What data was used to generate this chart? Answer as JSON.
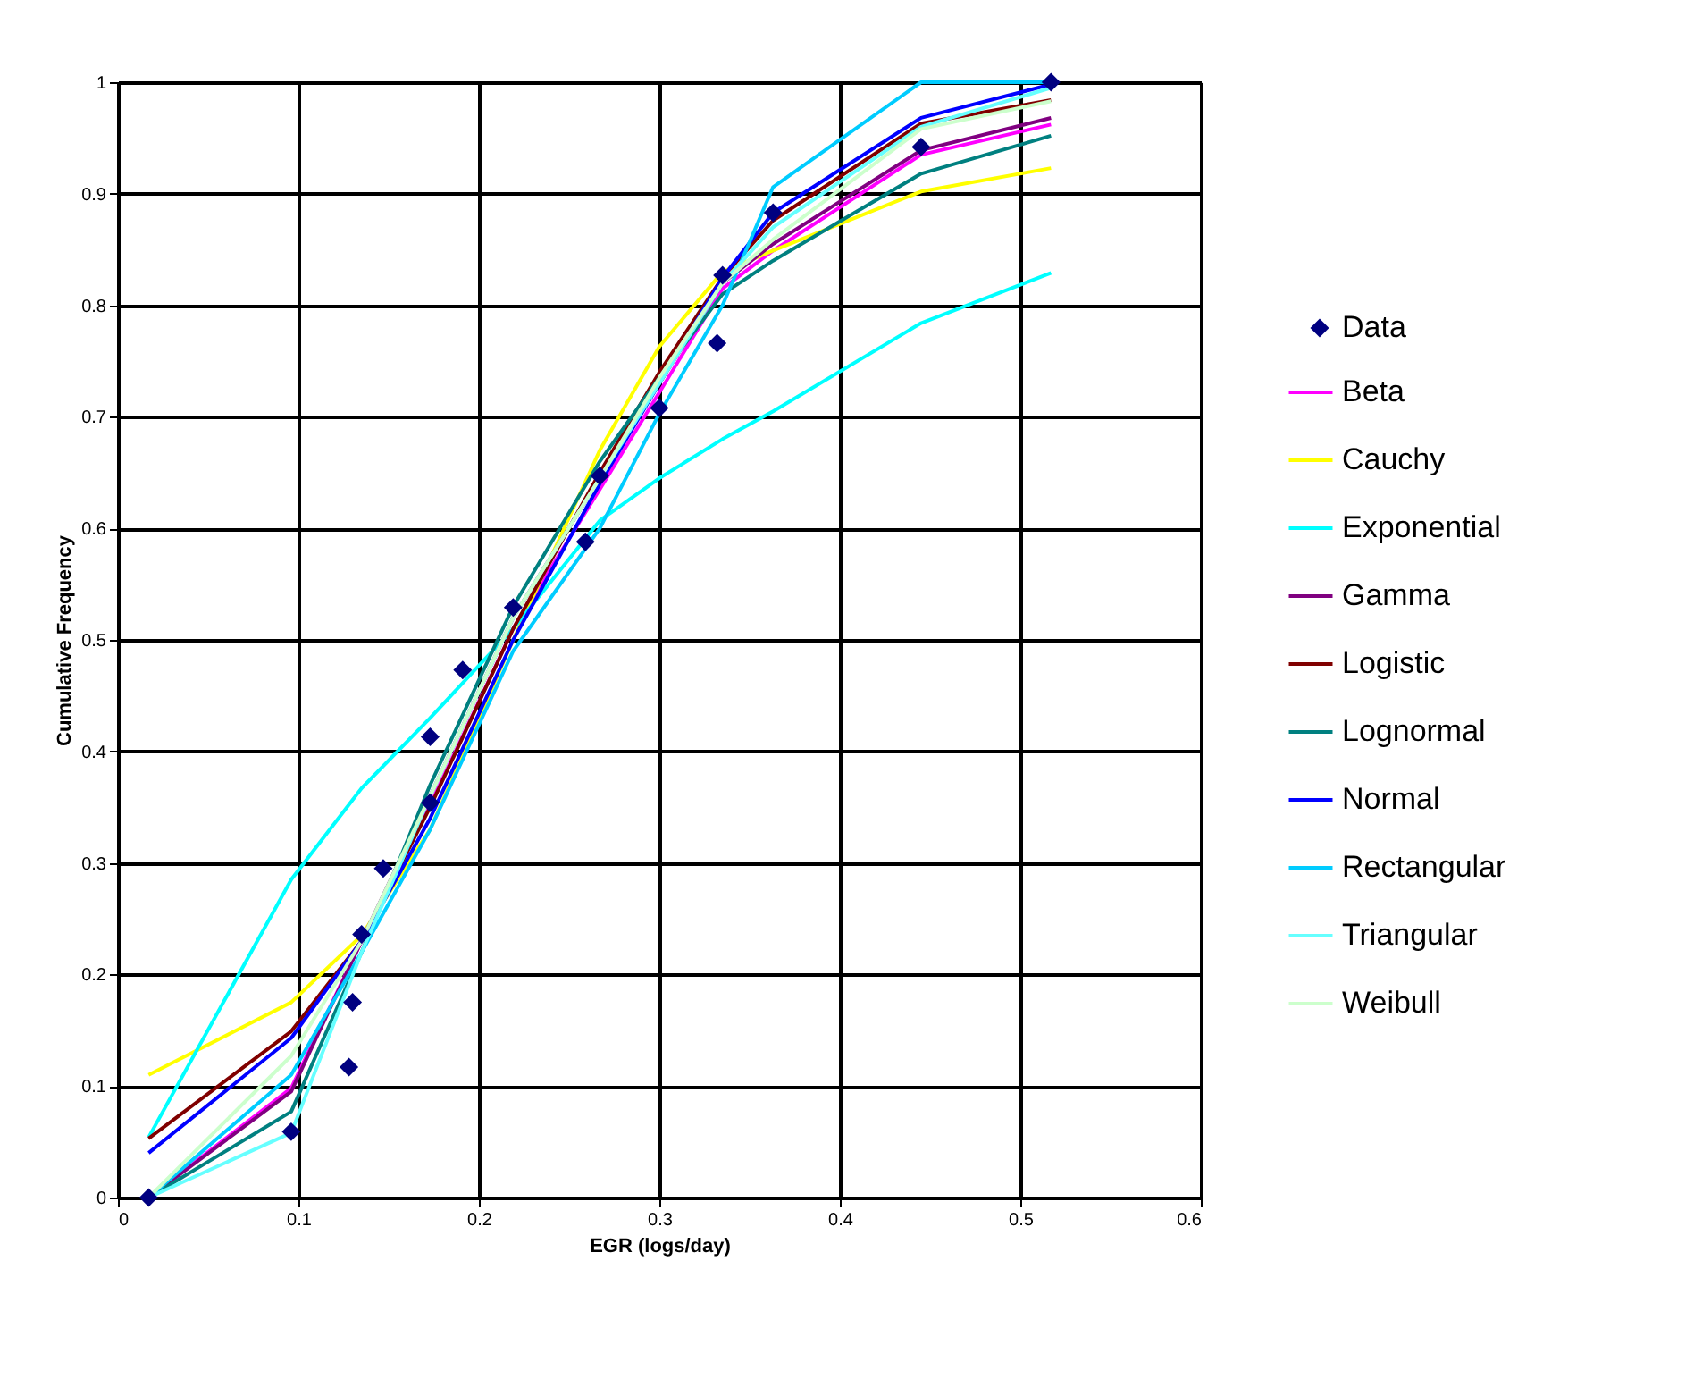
{
  "chart_data": {
    "type": "line",
    "xlabel": "EGR (logs/day)",
    "ylabel": "Cumulative Frequency",
    "xlim": [
      0,
      0.6
    ],
    "xticks": [
      0,
      0.1,
      0.2,
      0.3,
      0.4,
      0.5,
      0.6
    ],
    "ylim": [
      0,
      1
    ],
    "yticks": [
      0,
      0.1,
      0.2,
      0.3,
      0.4,
      0.5,
      0.6,
      0.7,
      0.8,
      0.9,
      1
    ],
    "grid": true,
    "legend": "right",
    "marker": "none",
    "line_style": "solid",
    "x": [
      0.017,
      0.096,
      0.135,
      0.173,
      0.219,
      0.267,
      0.3,
      0.335,
      0.363,
      0.445,
      0.517
    ],
    "series": [
      {
        "name": "Data",
        "type": "scatter",
        "marker": "diamond",
        "color": "#000080",
        "x": [
          0.017,
          0.096,
          0.128,
          0.13,
          0.135,
          0.147,
          0.173,
          0.173,
          0.191,
          0.219,
          0.259,
          0.267,
          0.3,
          0.332,
          0.335,
          0.363,
          0.445,
          0.517
        ],
        "values": [
          0,
          0.059,
          0.117,
          0.175,
          0.236,
          0.295,
          0.413,
          0.354,
          0.473,
          0.529,
          0.588,
          0.647,
          0.708,
          0.766,
          0.827,
          0.883,
          0.942,
          1.0
        ]
      },
      {
        "name": "Beta",
        "color": "#ff00ff",
        "values": [
          0,
          0.098,
          0.23,
          0.352,
          0.51,
          0.635,
          0.722,
          0.815,
          0.849,
          0.935,
          0.962
        ]
      },
      {
        "name": "Cauchy",
        "color": "#ffff00",
        "values": [
          0.11,
          0.175,
          0.235,
          0.33,
          0.5,
          0.67,
          0.763,
          0.83,
          0.849,
          0.902,
          0.923
        ]
      },
      {
        "name": "Exponential",
        "color": "#00ffff",
        "values": [
          0.054,
          0.285,
          0.367,
          0.43,
          0.51,
          0.607,
          0.645,
          0.68,
          0.705,
          0.784,
          0.829
        ]
      },
      {
        "name": "Gamma",
        "color": "#800080",
        "values": [
          0,
          0.095,
          0.23,
          0.36,
          0.52,
          0.645,
          0.73,
          0.82,
          0.855,
          0.939,
          0.968
        ]
      },
      {
        "name": "Logistic",
        "color": "#800000",
        "values": [
          0.053,
          0.149,
          0.23,
          0.35,
          0.51,
          0.65,
          0.74,
          0.825,
          0.876,
          0.963,
          0.984
        ]
      },
      {
        "name": "Lognormal",
        "color": "#008080",
        "values": [
          0,
          0.077,
          0.22,
          0.37,
          0.53,
          0.66,
          0.735,
          0.81,
          0.84,
          0.918,
          0.952
        ]
      },
      {
        "name": "Normal",
        "color": "#0000ff",
        "values": [
          0.04,
          0.143,
          0.23,
          0.34,
          0.5,
          0.64,
          0.73,
          0.825,
          0.883,
          0.968,
          0.998
        ]
      },
      {
        "name": "Rectangular",
        "color": "#00ccff",
        "values": [
          0,
          0.11,
          0.22,
          0.33,
          0.49,
          0.6,
          0.703,
          0.8,
          0.906,
          1.0,
          1.0
        ]
      },
      {
        "name": "Triangular",
        "color": "#66ffff",
        "values": [
          0,
          0.058,
          0.22,
          0.36,
          0.52,
          0.645,
          0.73,
          0.82,
          0.87,
          0.96,
          0.995
        ]
      },
      {
        "name": "Weibull",
        "color": "#ccffcc",
        "values": [
          0,
          0.127,
          0.23,
          0.36,
          0.52,
          0.645,
          0.735,
          0.82,
          0.859,
          0.958,
          0.983
        ]
      }
    ]
  }
}
